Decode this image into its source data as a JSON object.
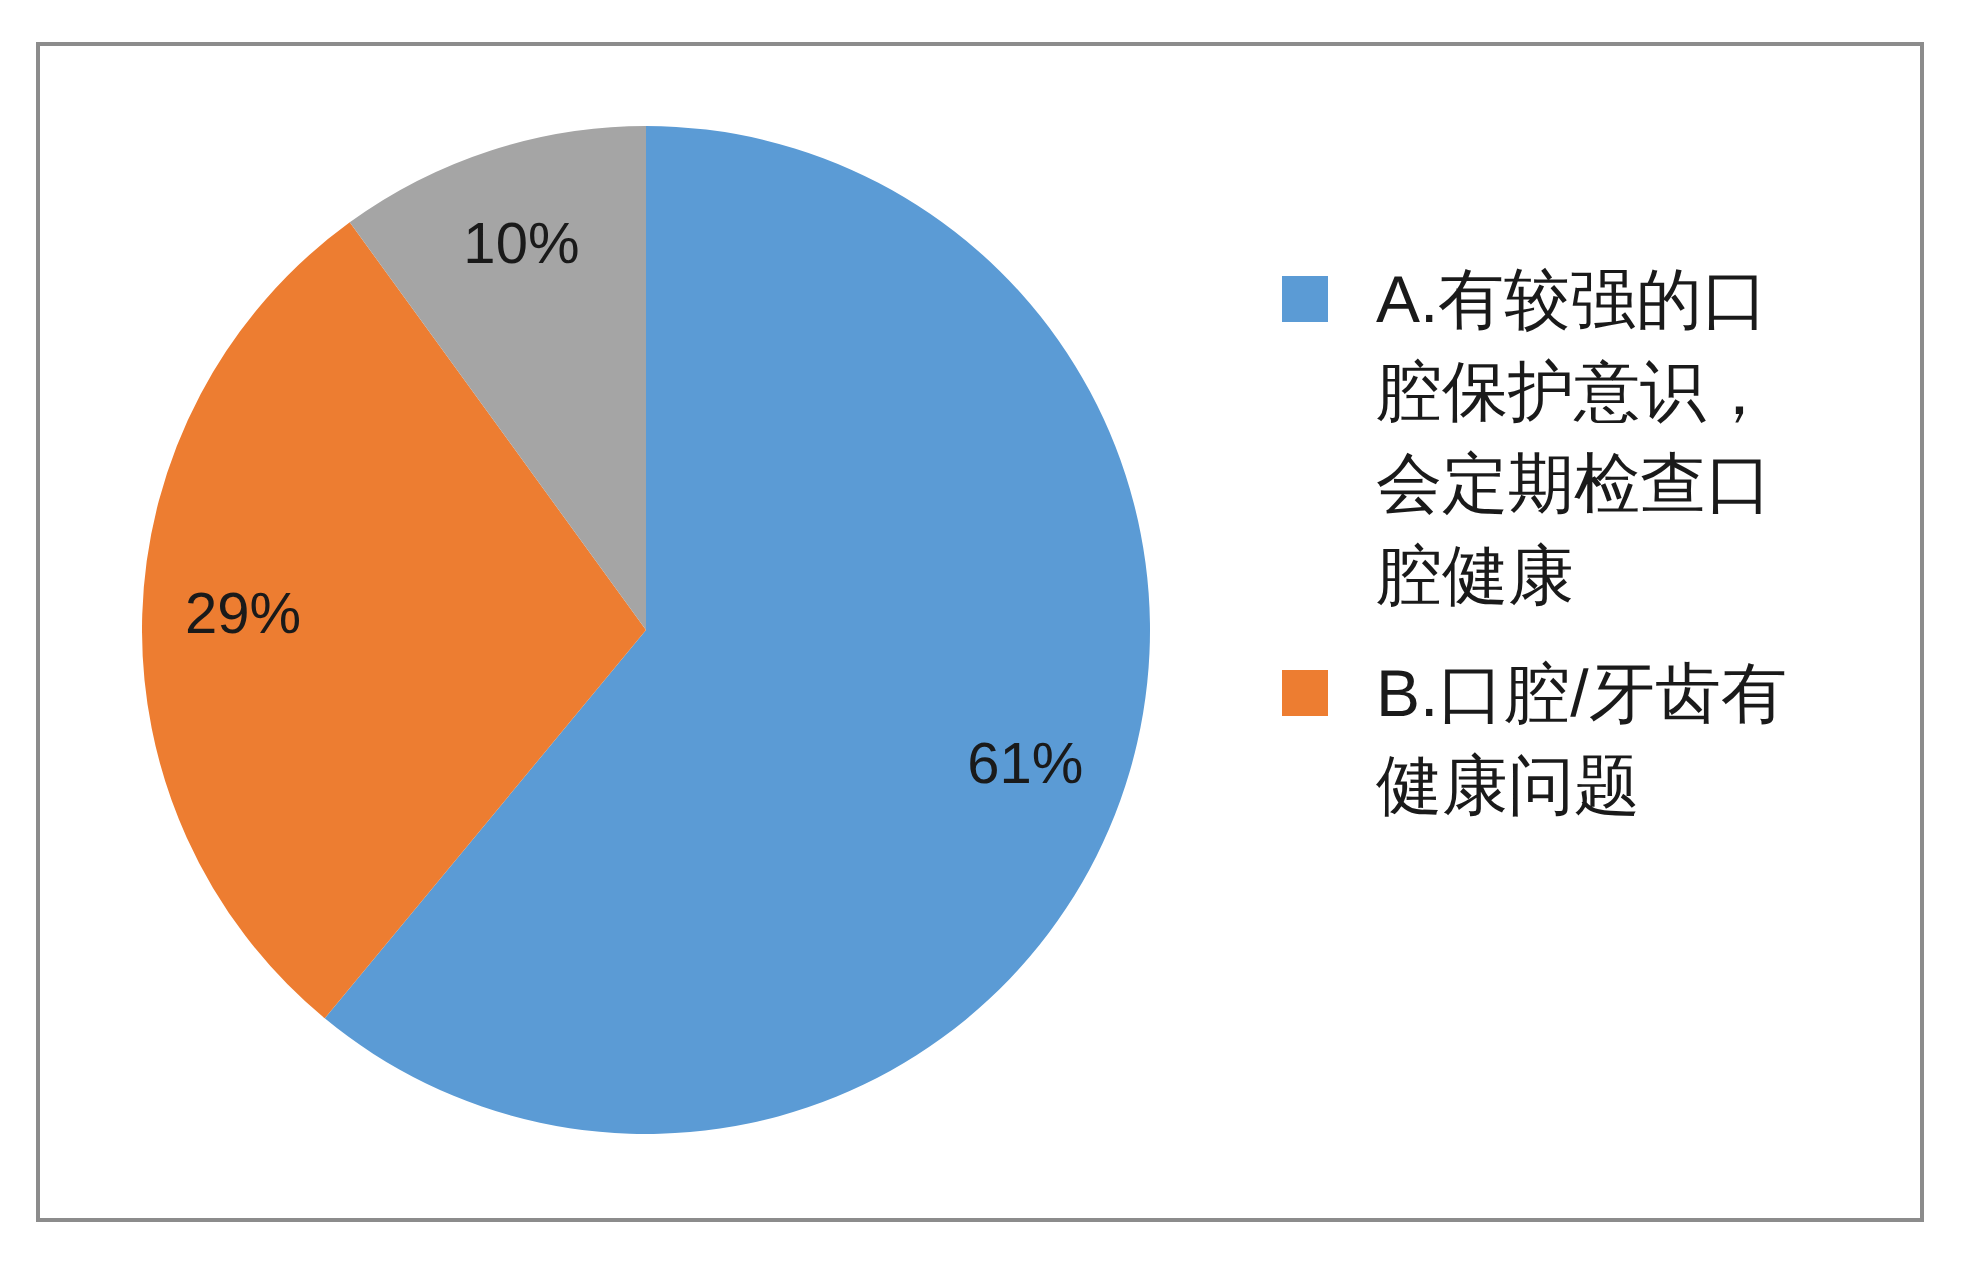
{
  "chart_data": {
    "type": "pie",
    "categories": [
      "A.有较强的口腔保护意识，会定期检查口腔健康",
      "B.口腔/牙齿有健康问题",
      null
    ],
    "values": [
      61,
      29,
      10
    ],
    "colors": [
      "#5b9bd5",
      "#ed7d31",
      "#a5a5a5"
    ],
    "value_labels": [
      "61%",
      "29%",
      "10%"
    ],
    "legend": "right"
  }
}
